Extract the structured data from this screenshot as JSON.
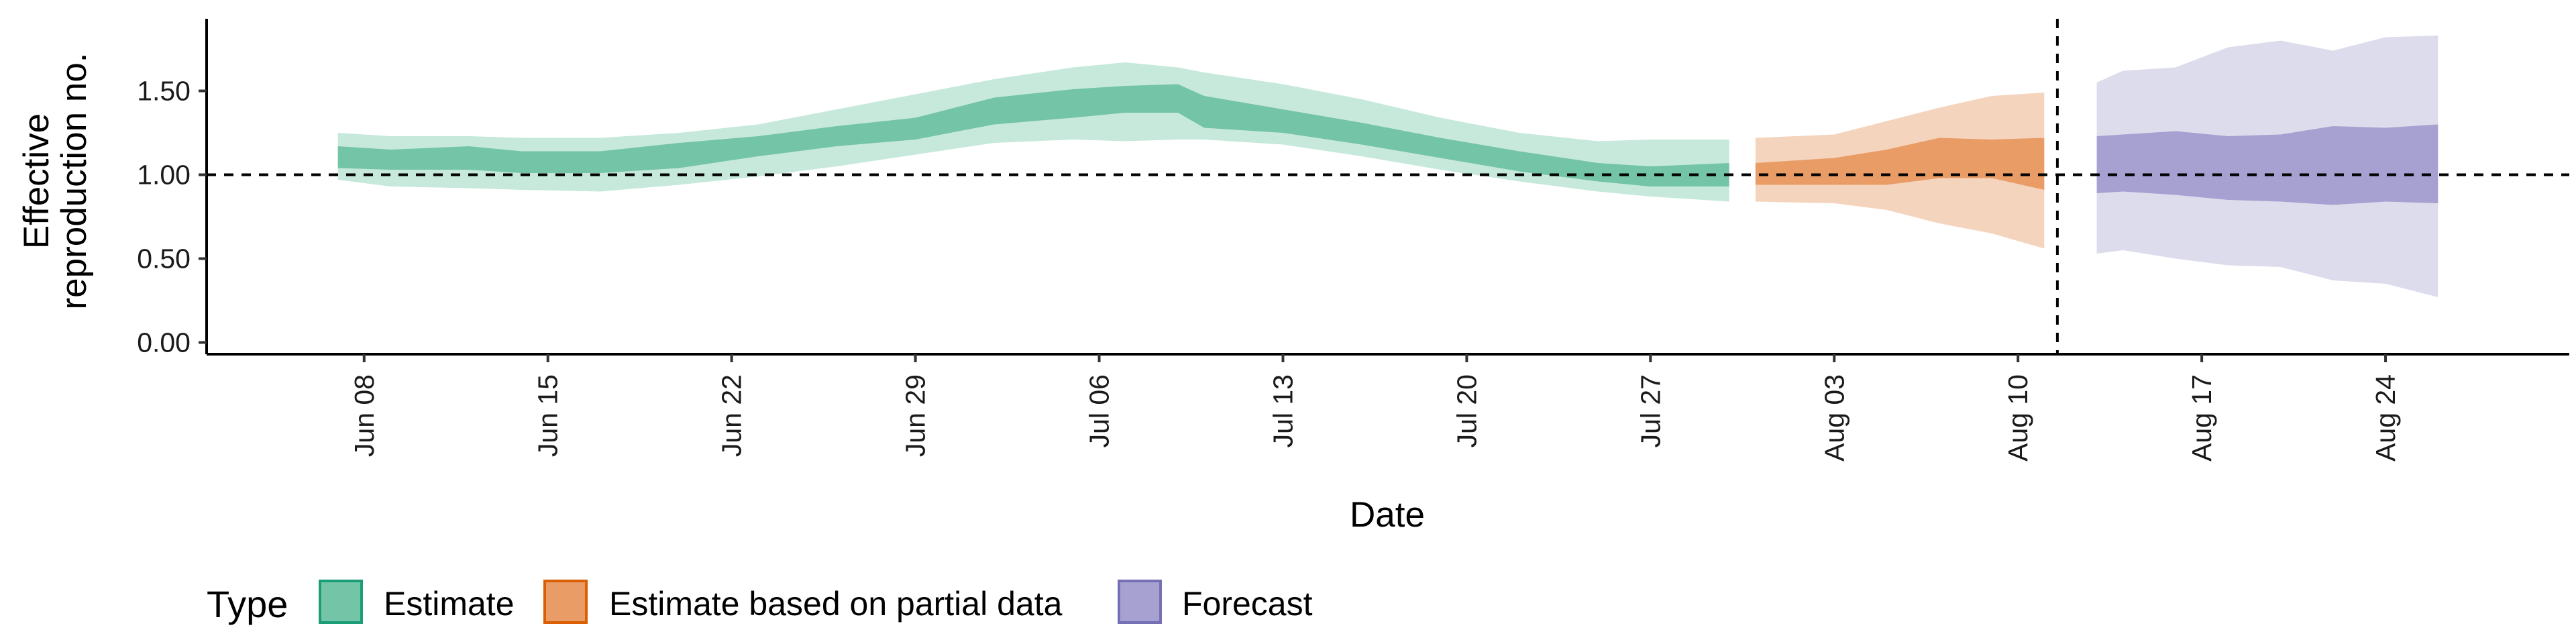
{
  "chart_data": {
    "type": "area",
    "xlabel": "Date",
    "ylabel_lines": [
      "Effective",
      "reproduction no."
    ],
    "x_ticks": [
      "Jun 08",
      "Jun 15",
      "Jun 22",
      "Jun 29",
      "Jul 06",
      "Jul 13",
      "Jul 20",
      "Jul 27",
      "Aug 03",
      "Aug 10",
      "Aug 17",
      "Aug 24"
    ],
    "y_ticks": [
      "0.00",
      "0.50",
      "1.00",
      "1.50"
    ],
    "ylim": [
      -0.07,
      1.93
    ],
    "xlim": [
      "2020-06-02",
      "2020-08-31"
    ],
    "reference_line_y": 1.0,
    "forecast_start": "2020-08-12",
    "legend": {
      "title": "Type",
      "entries": [
        "Estimate",
        "Estimate based on partial data",
        "Forecast"
      ]
    },
    "series": [
      {
        "name": "Estimate",
        "color_outer": "#c6e9dc",
        "color_inner": "#74c4a7",
        "points": [
          {
            "date": "2020-06-07",
            "lo90": 0.97,
            "lo50": 1.04,
            "hi50": 1.17,
            "hi90": 1.25
          },
          {
            "date": "2020-06-09",
            "lo90": 0.93,
            "lo50": 1.03,
            "hi50": 1.15,
            "hi90": 1.23
          },
          {
            "date": "2020-06-12",
            "lo90": 0.92,
            "lo50": 1.03,
            "hi50": 1.17,
            "hi90": 1.23
          },
          {
            "date": "2020-06-14",
            "lo90": 0.91,
            "lo50": 1.01,
            "hi50": 1.14,
            "hi90": 1.22
          },
          {
            "date": "2020-06-17",
            "lo90": 0.9,
            "lo50": 1.01,
            "hi50": 1.14,
            "hi90": 1.22
          },
          {
            "date": "2020-06-20",
            "lo90": 0.94,
            "lo50": 1.04,
            "hi50": 1.19,
            "hi90": 1.25
          },
          {
            "date": "2020-06-23",
            "lo90": 0.99,
            "lo50": 1.11,
            "hi50": 1.23,
            "hi90": 1.3
          },
          {
            "date": "2020-06-26",
            "lo90": 1.05,
            "lo50": 1.17,
            "hi50": 1.29,
            "hi90": 1.39
          },
          {
            "date": "2020-06-29",
            "lo90": 1.12,
            "lo50": 1.21,
            "hi50": 1.34,
            "hi90": 1.48
          },
          {
            "date": "2020-07-02",
            "lo90": 1.19,
            "lo50": 1.3,
            "hi50": 1.46,
            "hi90": 1.57
          },
          {
            "date": "2020-07-05",
            "lo90": 1.21,
            "lo50": 1.34,
            "hi50": 1.51,
            "hi90": 1.64
          },
          {
            "date": "2020-07-07",
            "lo90": 1.2,
            "lo50": 1.37,
            "hi50": 1.53,
            "hi90": 1.67
          },
          {
            "date": "2020-07-09",
            "lo90": 1.21,
            "lo50": 1.37,
            "hi50": 1.54,
            "hi90": 1.64
          },
          {
            "date": "2020-07-10",
            "lo90": 1.21,
            "lo50": 1.28,
            "hi50": 1.47,
            "hi90": 1.61
          },
          {
            "date": "2020-07-13",
            "lo90": 1.18,
            "lo50": 1.25,
            "hi50": 1.39,
            "hi90": 1.54
          },
          {
            "date": "2020-07-16",
            "lo90": 1.11,
            "lo50": 1.18,
            "hi50": 1.31,
            "hi90": 1.45
          },
          {
            "date": "2020-07-19",
            "lo90": 1.03,
            "lo50": 1.1,
            "hi50": 1.22,
            "hi90": 1.34
          },
          {
            "date": "2020-07-22",
            "lo90": 0.96,
            "lo50": 1.02,
            "hi50": 1.14,
            "hi90": 1.25
          },
          {
            "date": "2020-07-25",
            "lo90": 0.9,
            "lo50": 0.96,
            "hi50": 1.07,
            "hi90": 1.2
          },
          {
            "date": "2020-07-27",
            "lo90": 0.87,
            "lo50": 0.93,
            "hi50": 1.05,
            "hi90": 1.21
          },
          {
            "date": "2020-07-30",
            "lo90": 0.84,
            "lo50": 0.93,
            "hi50": 1.07,
            "hi90": 1.21
          }
        ]
      },
      {
        "name": "Estimate based on partial data",
        "color_outer": "#f5d4bd",
        "color_inner": "#e99c66",
        "points": [
          {
            "date": "2020-07-31",
            "lo90": 0.84,
            "lo50": 0.94,
            "hi50": 1.07,
            "hi90": 1.22
          },
          {
            "date": "2020-08-03",
            "lo90": 0.83,
            "lo50": 0.94,
            "hi50": 1.1,
            "hi90": 1.24
          },
          {
            "date": "2020-08-05",
            "lo90": 0.79,
            "lo50": 0.94,
            "hi50": 1.15,
            "hi90": 1.32
          },
          {
            "date": "2020-08-07",
            "lo90": 0.71,
            "lo50": 0.98,
            "hi50": 1.22,
            "hi90": 1.4
          },
          {
            "date": "2020-08-09",
            "lo90": 0.65,
            "lo50": 0.98,
            "hi50": 1.21,
            "hi90": 1.47
          },
          {
            "date": "2020-08-11",
            "lo90": 0.56,
            "lo50": 0.91,
            "hi50": 1.22,
            "hi90": 1.49
          }
        ]
      },
      {
        "name": "Forecast",
        "color_outer": "#dcdcec",
        "color_inner": "#a6a1d0",
        "points": [
          {
            "date": "2020-08-13",
            "lo90": 0.53,
            "lo50": 0.89,
            "hi50": 1.23,
            "hi90": 1.55
          },
          {
            "date": "2020-08-14",
            "lo90": 0.55,
            "lo50": 0.9,
            "hi50": 1.24,
            "hi90": 1.62
          },
          {
            "date": "2020-08-16",
            "lo90": 0.5,
            "lo50": 0.88,
            "hi50": 1.26,
            "hi90": 1.64
          },
          {
            "date": "2020-08-18",
            "lo90": 0.46,
            "lo50": 0.85,
            "hi50": 1.23,
            "hi90": 1.76
          },
          {
            "date": "2020-08-20",
            "lo90": 0.45,
            "lo50": 0.84,
            "hi50": 1.24,
            "hi90": 1.8
          },
          {
            "date": "2020-08-22",
            "lo90": 0.37,
            "lo50": 0.82,
            "hi50": 1.29,
            "hi90": 1.74
          },
          {
            "date": "2020-08-24",
            "lo90": 0.35,
            "lo50": 0.84,
            "hi50": 1.28,
            "hi90": 1.82
          },
          {
            "date": "2020-08-26",
            "lo90": 0.27,
            "lo50": 0.83,
            "hi50": 1.3,
            "hi90": 1.83
          }
        ]
      }
    ]
  }
}
